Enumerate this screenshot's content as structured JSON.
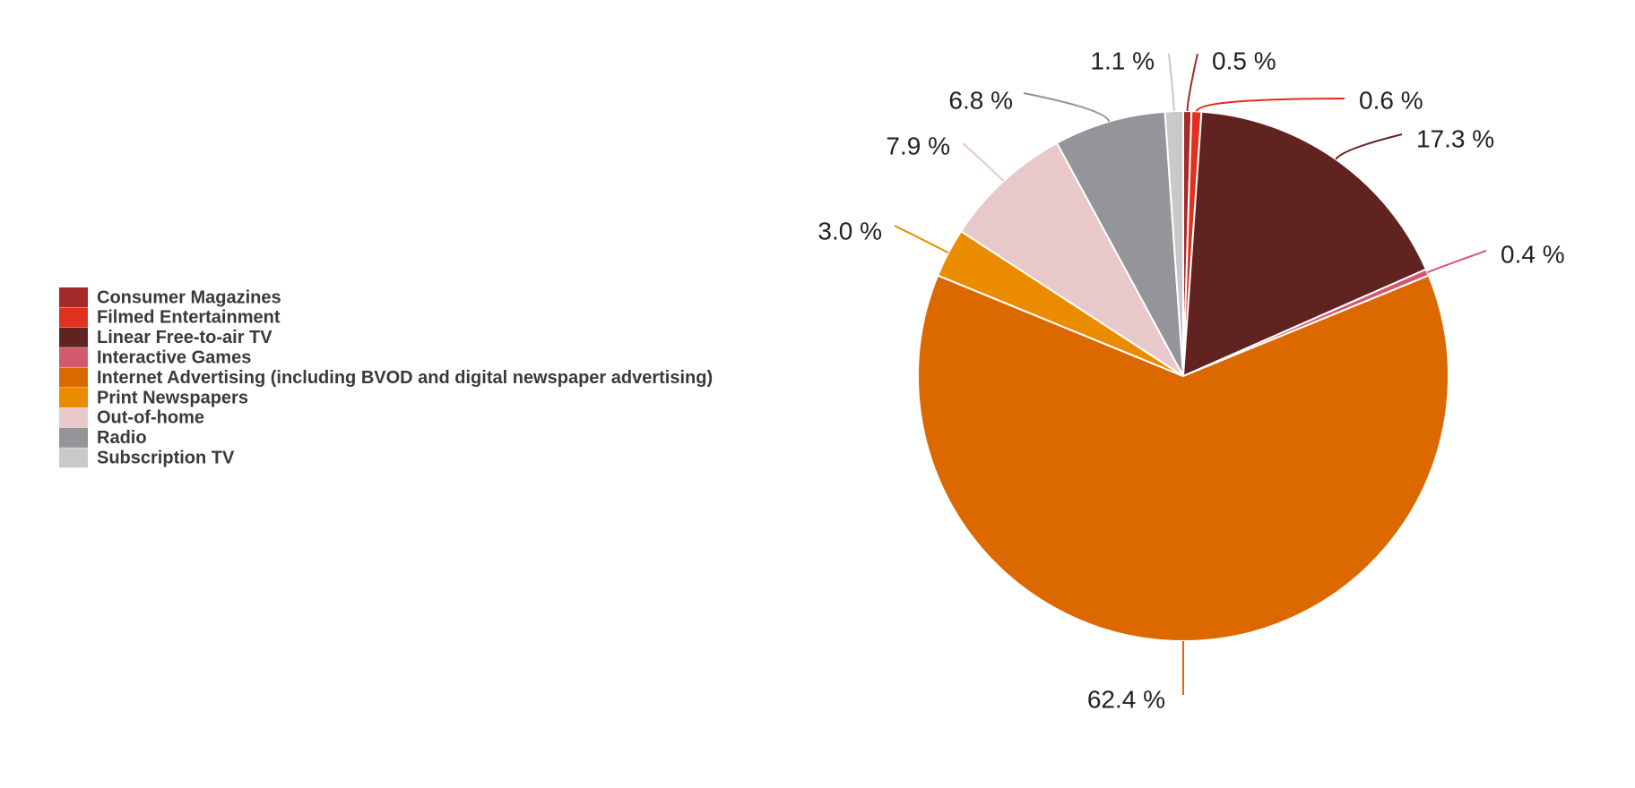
{
  "chart_data": {
    "type": "pie",
    "title": "",
    "legend_position": "left",
    "start_angle_deg": 0,
    "direction": "clockwise",
    "slices": [
      {
        "name": "Consumer Magazines",
        "value": 0.5,
        "label": "0.5 %",
        "color": "#a52a2a"
      },
      {
        "name": "Filmed Entertainment",
        "value": 0.6,
        "label": "0.6 %",
        "color": "#e0301e"
      },
      {
        "name": "Linear Free-to-air TV",
        "value": 17.3,
        "label": "17.3 %",
        "color": "#602320"
      },
      {
        "name": "Interactive Games",
        "value": 0.4,
        "label": "0.4 %",
        "color": "#d35a6e"
      },
      {
        "name": "Internet Advertising (including BVOD and digital newspaper advertising)",
        "value": 62.4,
        "label": "62.4 %",
        "color": "#dc6900"
      },
      {
        "name": "Print Newspapers",
        "value": 3.0,
        "label": "3.0 %",
        "color": "#eb8c00"
      },
      {
        "name": "Out-of-home",
        "value": 7.9,
        "label": "7.9 %",
        "color": "#e8c8c8"
      },
      {
        "name": "Radio",
        "value": 6.8,
        "label": "6.8 %",
        "color": "#939598"
      },
      {
        "name": "Subscription TV",
        "value": 1.1,
        "label": "1.1 %",
        "color": "#c9c9cb"
      }
    ]
  }
}
